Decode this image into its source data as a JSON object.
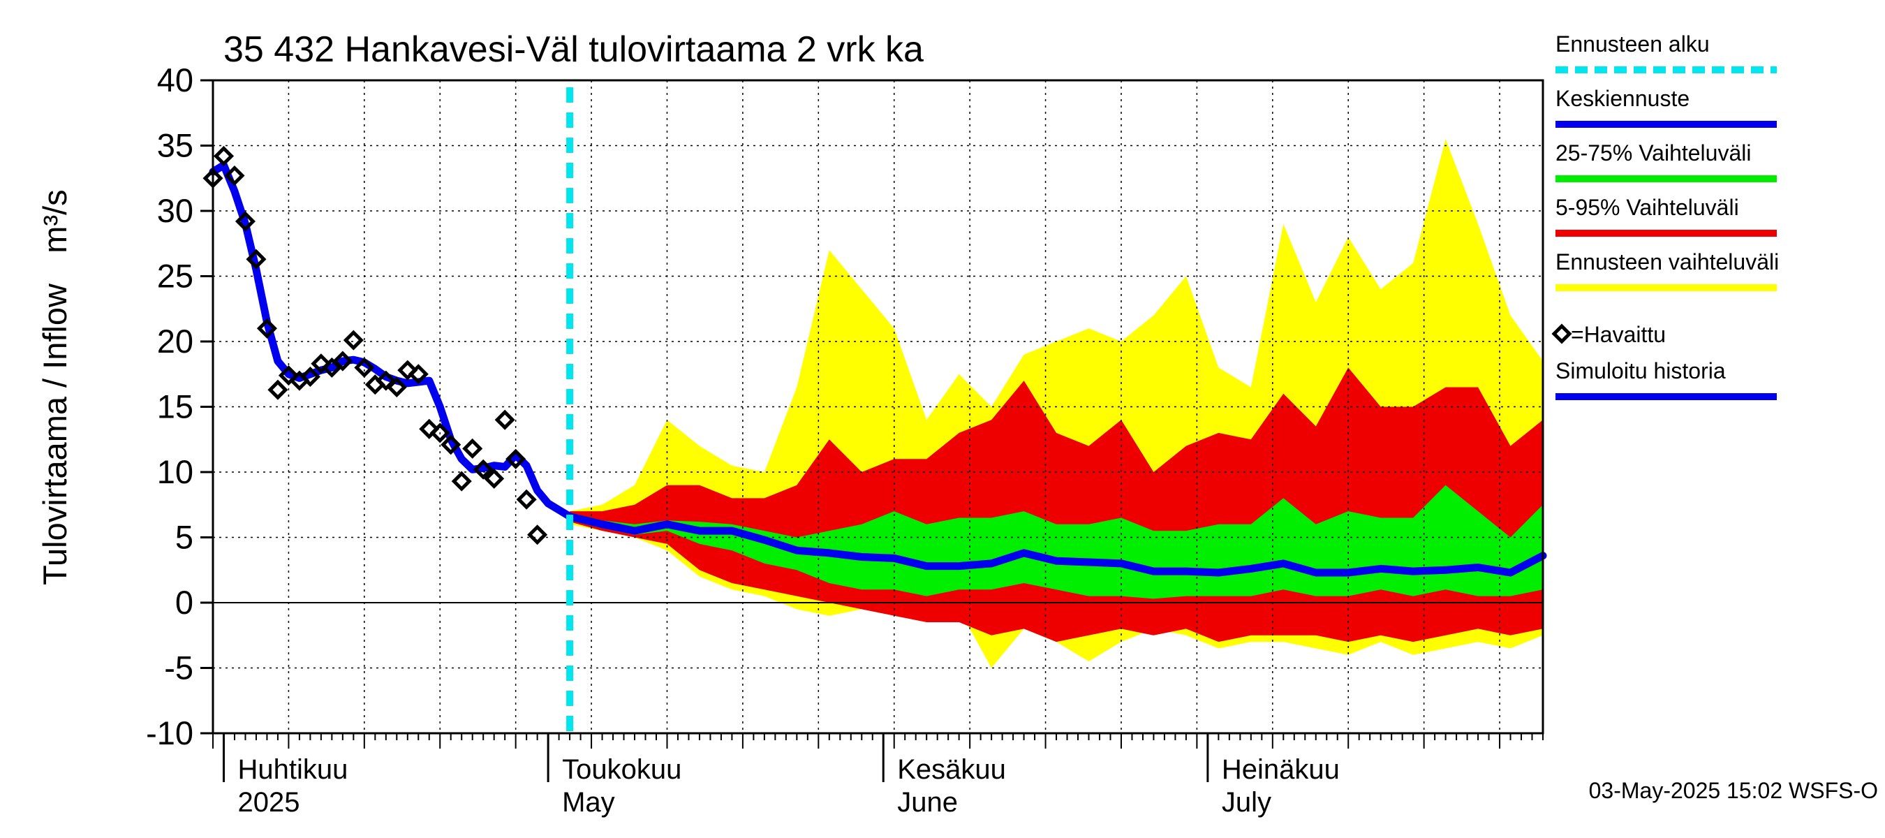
{
  "chart_data": {
    "type": "area",
    "title": "35 432 Hankavesi-Väl tulovirtaama 2 vrk ka",
    "ylabel": "Tulovirtaama / Inflow",
    "yunit": "m³/s",
    "ylim": [
      -10,
      40
    ],
    "yticks": [
      -10,
      -5,
      0,
      5,
      10,
      15,
      20,
      25,
      30,
      35,
      40
    ],
    "xlim": [
      "2025-03-31",
      "2025-08-01"
    ],
    "grid": true,
    "legend_position": "right",
    "month_labels": [
      {
        "date": "2025-04-01",
        "line1": "Huhtikuu",
        "line2": "2025"
      },
      {
        "date": "2025-05-01",
        "line1": "Toukokuu",
        "line2": "May"
      },
      {
        "date": "2025-06-01",
        "line1": "Kesäkuu",
        "line2": "June"
      },
      {
        "date": "2025-07-01",
        "line1": "Heinäkuu",
        "line2": "July"
      }
    ],
    "forecast_start": "2025-05-03",
    "legend": [
      {
        "label": "Ennusteen alku",
        "color": "#00e5ee",
        "style": "dashed"
      },
      {
        "label": "Keskiennuste",
        "color": "#0000ee",
        "style": "line"
      },
      {
        "label": "25-75% Vaihteluväli",
        "color": "#00ee00",
        "style": "line"
      },
      {
        "label": "5-95% Vaihteluväli",
        "color": "#ee0000",
        "style": "line"
      },
      {
        "label": "Ennusteen vaihteluväli",
        "color": "#ffff00",
        "style": "line"
      },
      {
        "label": "=Havaittu",
        "color": "#000000",
        "style": "diamond"
      },
      {
        "label": "Simuloitu historia",
        "color": "#0000ee",
        "style": "line"
      }
    ],
    "series": [
      {
        "name": "Simuloitu historia",
        "color": "#0000ee",
        "x": [
          "2025-03-31",
          "2025-04-01",
          "2025-04-02",
          "2025-04-03",
          "2025-04-04",
          "2025-04-05",
          "2025-04-06",
          "2025-04-07",
          "2025-04-08",
          "2025-04-09",
          "2025-04-10",
          "2025-04-11",
          "2025-04-12",
          "2025-04-13",
          "2025-04-14",
          "2025-04-15",
          "2025-04-16",
          "2025-04-17",
          "2025-04-18",
          "2025-04-19",
          "2025-04-20",
          "2025-04-21",
          "2025-04-22",
          "2025-04-23",
          "2025-04-24",
          "2025-04-25",
          "2025-04-26",
          "2025-04-27",
          "2025-04-28",
          "2025-04-29",
          "2025-04-30",
          "2025-05-01",
          "2025-05-02",
          "2025-05-03"
        ],
        "values": [
          33.0,
          33.5,
          31.5,
          29.0,
          25.5,
          21.5,
          18.5,
          17.5,
          17.2,
          17.5,
          17.8,
          18.0,
          18.5,
          18.6,
          18.4,
          17.9,
          17.3,
          17.0,
          16.8,
          16.9,
          17.0,
          15.0,
          12.5,
          11.0,
          10.2,
          10.3,
          10.5,
          10.4,
          11.3,
          10.5,
          8.6,
          7.6,
          7.1,
          6.6
        ]
      },
      {
        "name": "Keskiennuste",
        "color": "#0000ee",
        "x": [
          "2025-05-03",
          "2025-05-06",
          "2025-05-09",
          "2025-05-12",
          "2025-05-15",
          "2025-05-18",
          "2025-05-21",
          "2025-05-24",
          "2025-05-27",
          "2025-05-30",
          "2025-06-02",
          "2025-06-05",
          "2025-06-08",
          "2025-06-11",
          "2025-06-14",
          "2025-06-17",
          "2025-06-20",
          "2025-06-23",
          "2025-06-26",
          "2025-06-29",
          "2025-07-02",
          "2025-07-05",
          "2025-07-08",
          "2025-07-11",
          "2025-07-14",
          "2025-07-17",
          "2025-07-20",
          "2025-07-23",
          "2025-07-26",
          "2025-07-29",
          "2025-08-01"
        ],
        "values": [
          6.6,
          6.0,
          5.5,
          6.0,
          5.5,
          5.5,
          4.8,
          4.0,
          3.8,
          3.5,
          3.4,
          2.8,
          2.8,
          3.0,
          3.8,
          3.2,
          3.1,
          3.0,
          2.4,
          2.4,
          2.3,
          2.6,
          3.0,
          2.3,
          2.3,
          2.6,
          2.4,
          2.5,
          2.7,
          2.3,
          3.6
        ]
      },
      {
        "name": "Havaittu",
        "color": "#000000",
        "x": [
          "2025-03-31",
          "2025-04-01",
          "2025-04-02",
          "2025-04-03",
          "2025-04-04",
          "2025-04-05",
          "2025-04-06",
          "2025-04-07",
          "2025-04-08",
          "2025-04-09",
          "2025-04-10",
          "2025-04-11",
          "2025-04-12",
          "2025-04-13",
          "2025-04-14",
          "2025-04-15",
          "2025-04-16",
          "2025-04-17",
          "2025-04-18",
          "2025-04-19",
          "2025-04-20",
          "2025-04-21",
          "2025-04-22",
          "2025-04-23",
          "2025-04-24",
          "2025-04-25",
          "2025-04-26",
          "2025-04-27",
          "2025-04-28",
          "2025-04-29",
          "2025-04-30",
          "2025-05-01",
          "2025-05-02"
        ],
        "values": [
          32.5,
          34.2,
          32.7,
          29.2,
          26.3,
          21.0,
          16.3,
          17.4,
          17.0,
          17.3,
          18.3,
          18.0,
          18.5,
          20.1,
          18.0,
          16.7,
          17.0,
          16.5,
          17.8,
          17.5,
          13.3,
          13.0,
          12.1,
          9.3,
          11.8,
          10.2,
          9.5,
          14.0,
          11.0,
          7.9,
          5.2,
          null,
          null
        ]
      }
    ],
    "bands": [
      {
        "name": "Ennusteen vaihteluväli",
        "color": "#ffff00",
        "x": [
          "2025-05-03",
          "2025-05-06",
          "2025-05-09",
          "2025-05-12",
          "2025-05-15",
          "2025-05-18",
          "2025-05-21",
          "2025-05-24",
          "2025-05-27",
          "2025-05-30",
          "2025-06-02",
          "2025-06-05",
          "2025-06-08",
          "2025-06-11",
          "2025-06-14",
          "2025-06-17",
          "2025-06-20",
          "2025-06-23",
          "2025-06-26",
          "2025-06-29",
          "2025-07-02",
          "2025-07-05",
          "2025-07-08",
          "2025-07-11",
          "2025-07-14",
          "2025-07-17",
          "2025-07-20",
          "2025-07-23",
          "2025-07-26",
          "2025-07-29",
          "2025-08-01"
        ],
        "upper": [
          7.0,
          7.5,
          9.0,
          14.0,
          12.0,
          10.5,
          10.0,
          16.5,
          27.0,
          24.0,
          21.0,
          14.0,
          17.5,
          15.0,
          19.0,
          20.0,
          21.0,
          20.0,
          22.0,
          25.0,
          18.0,
          16.5,
          29.0,
          23.0,
          28.0,
          24.0,
          26.0,
          35.5,
          29.0,
          22.0,
          18.5
        ],
        "lower": [
          6.0,
          5.5,
          5.0,
          4.0,
          2.0,
          1.0,
          0.5,
          -0.5,
          -1.0,
          -0.5,
          -0.5,
          -1.0,
          -0.5,
          -5.0,
          -2.0,
          -3.0,
          -4.5,
          -3.0,
          -2.0,
          -2.5,
          -3.5,
          -3.0,
          -3.0,
          -3.5,
          -4.0,
          -3.0,
          -4.0,
          -3.5,
          -3.0,
          -3.5,
          -2.5
        ]
      },
      {
        "name": "5-95% Vaihteluväli",
        "color": "#ee0000",
        "x": [
          "2025-05-03",
          "2025-05-06",
          "2025-05-09",
          "2025-05-12",
          "2025-05-15",
          "2025-05-18",
          "2025-05-21",
          "2025-05-24",
          "2025-05-27",
          "2025-05-30",
          "2025-06-02",
          "2025-06-05",
          "2025-06-08",
          "2025-06-11",
          "2025-06-14",
          "2025-06-17",
          "2025-06-20",
          "2025-06-23",
          "2025-06-26",
          "2025-06-29",
          "2025-07-02",
          "2025-07-05",
          "2025-07-08",
          "2025-07-11",
          "2025-07-14",
          "2025-07-17",
          "2025-07-20",
          "2025-07-23",
          "2025-07-26",
          "2025-07-29",
          "2025-08-01"
        ],
        "upper": [
          7.0,
          7.0,
          7.5,
          9.0,
          9.0,
          8.0,
          8.0,
          9.0,
          12.5,
          10.0,
          11.0,
          11.0,
          13.0,
          14.0,
          17.0,
          13.0,
          12.0,
          14.0,
          10.0,
          12.0,
          13.0,
          12.5,
          16.0,
          13.5,
          18.0,
          15.0,
          15.0,
          16.5,
          16.5,
          12.0,
          14.0
        ],
        "lower": [
          6.2,
          5.5,
          5.0,
          4.5,
          2.5,
          1.5,
          1.0,
          0.5,
          0.0,
          -0.5,
          -1.0,
          -1.5,
          -1.5,
          -2.5,
          -2.0,
          -3.0,
          -2.5,
          -2.0,
          -2.5,
          -2.0,
          -3.0,
          -2.5,
          -2.5,
          -2.5,
          -3.0,
          -2.5,
          -3.0,
          -2.5,
          -2.0,
          -2.5,
          -2.0
        ]
      },
      {
        "name": "25-75% Vaihteluväli",
        "color": "#00ee00",
        "x": [
          "2025-05-03",
          "2025-05-06",
          "2025-05-09",
          "2025-05-12",
          "2025-05-15",
          "2025-05-18",
          "2025-05-21",
          "2025-05-24",
          "2025-05-27",
          "2025-05-30",
          "2025-06-02",
          "2025-06-05",
          "2025-06-08",
          "2025-06-11",
          "2025-06-14",
          "2025-06-17",
          "2025-06-20",
          "2025-06-23",
          "2025-06-26",
          "2025-06-29",
          "2025-07-02",
          "2025-07-05",
          "2025-07-08",
          "2025-07-11",
          "2025-07-14",
          "2025-07-17",
          "2025-07-20",
          "2025-07-23",
          "2025-07-26",
          "2025-07-29",
          "2025-08-01"
        ],
        "upper": [
          6.8,
          6.3,
          6.0,
          6.3,
          6.2,
          6.0,
          5.5,
          5.0,
          5.5,
          6.0,
          7.0,
          6.0,
          6.5,
          6.5,
          7.0,
          6.0,
          6.0,
          6.5,
          5.5,
          5.5,
          6.0,
          6.0,
          8.0,
          6.0,
          7.0,
          6.5,
          6.5,
          9.0,
          7.0,
          5.0,
          7.5
        ],
        "lower": [
          6.3,
          5.7,
          5.2,
          5.5,
          4.5,
          4.0,
          3.0,
          2.5,
          1.5,
          1.0,
          1.0,
          0.5,
          1.0,
          1.0,
          1.5,
          1.0,
          0.5,
          0.5,
          0.3,
          0.5,
          0.5,
          0.5,
          1.0,
          0.5,
          0.5,
          1.0,
          0.5,
          1.0,
          0.5,
          0.5,
          1.0
        ]
      }
    ]
  },
  "footer": "03-May-2025 15:02 WSFS-O"
}
